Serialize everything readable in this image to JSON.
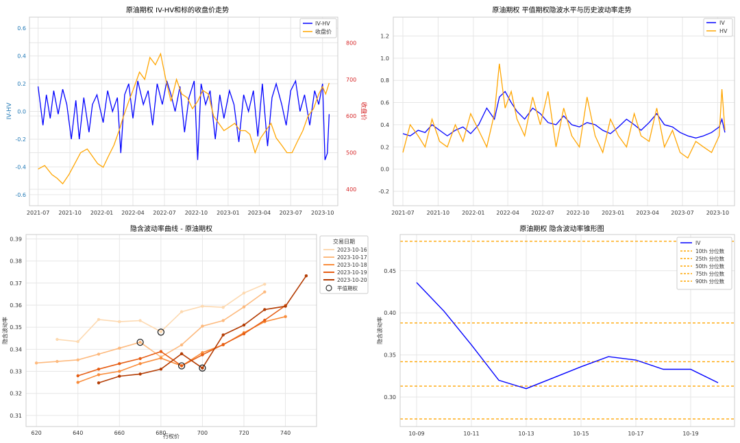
{
  "charts": [
    {
      "title": "原油期权 IV-HV和标的收盘价走势",
      "x_ticks": [
        "2021-07",
        "2021-10",
        "2022-01",
        "2022-04",
        "2022-07",
        "2022-10",
        "2023-01",
        "2023-04",
        "2023-07",
        "2023-10"
      ],
      "y_left_ticks": [
        "-0.6",
        "-0.4",
        "-0.2",
        "0.0",
        "0.2",
        "0.4",
        "0.6"
      ],
      "y_right_ticks": [
        "400",
        "500",
        "600",
        "700",
        "800"
      ],
      "y_left_label": "IV-HV",
      "y_right_label": "收盘价",
      "legend": [
        "IV-HV",
        "收盘价"
      ]
    },
    {
      "title": "原油期权 平值期权隐波水平与历史波动率走势",
      "x_ticks": [
        "2021-07",
        "2021-10",
        "2022-01",
        "2022-04",
        "2022-07",
        "2022-10",
        "2023-01",
        "2023-04",
        "2023-07",
        "2023-10"
      ],
      "y_ticks": [
        "-0.2",
        "0.0",
        "0.2",
        "0.4",
        "0.6",
        "0.8",
        "1.0",
        "1.2"
      ],
      "legend": [
        "IV",
        "HV"
      ]
    },
    {
      "title": "隐含波动率曲线 - 原油期权",
      "xlabel": "行权价",
      "ylabel": "隐含波动率",
      "x_ticks": [
        "620",
        "640",
        "660",
        "680",
        "700",
        "720",
        "740"
      ],
      "y_ticks": [
        "0.31",
        "0.32",
        "0.33",
        "0.34",
        "0.35",
        "0.36",
        "0.37",
        "0.38",
        "0.39"
      ],
      "legend_title": "交易日期",
      "legend": [
        "2023-10-16",
        "2023-10-17",
        "2023-10-18",
        "2023-10-19",
        "2023-10-20",
        "平值期权"
      ]
    },
    {
      "title": "原油期权 隐含波动率锥形图",
      "ylabel": "隐含波动率",
      "x_ticks": [
        "10-09",
        "10-11",
        "10-13",
        "10-15",
        "10-17",
        "10-19"
      ],
      "y_ticks": [
        "0.30",
        "0.35",
        "0.40",
        "0.45"
      ],
      "legend": [
        "IV",
        "10th 分位数",
        "25th 分位数",
        "50th 分位数",
        "75th 分位数",
        "90th 分位数"
      ]
    }
  ],
  "chart_data": [
    {
      "type": "line",
      "title": "原油期权 IV-HV和标的收盘价走势",
      "x_range": [
        "2021-07-01",
        "2023-10-20"
      ],
      "ylim_left": [
        -0.68,
        0.68
      ],
      "ylim_right": [
        355,
        870
      ],
      "series": [
        {
          "name": "IV-HV",
          "axis": "left",
          "color": "#0000ff",
          "x": [
            "2021-07-01",
            "2021-07-15",
            "2021-07-25",
            "2021-08-05",
            "2021-08-15",
            "2021-08-28",
            "2021-09-10",
            "2021-09-22",
            "2021-10-05",
            "2021-10-18",
            "2021-10-28",
            "2021-11-10",
            "2021-11-25",
            "2021-12-05",
            "2021-12-18",
            "2022-01-05",
            "2022-01-18",
            "2022-02-01",
            "2022-02-15",
            "2022-02-25",
            "2022-03-08",
            "2022-03-20",
            "2022-04-01",
            "2022-04-15",
            "2022-05-01",
            "2022-05-15",
            "2022-05-28",
            "2022-06-10",
            "2022-06-25",
            "2022-07-08",
            "2022-07-20",
            "2022-08-01",
            "2022-08-15",
            "2022-08-28",
            "2022-09-10",
            "2022-09-25",
            "2022-10-05",
            "2022-10-15",
            "2022-10-28",
            "2022-11-10",
            "2022-11-25",
            "2022-12-08",
            "2022-12-20",
            "2023-01-05",
            "2023-01-18",
            "2023-02-01",
            "2023-02-15",
            "2023-03-01",
            "2023-03-15",
            "2023-03-28",
            "2023-04-10",
            "2023-04-25",
            "2023-05-08",
            "2023-05-20",
            "2023-06-05",
            "2023-06-18",
            "2023-07-01",
            "2023-07-15",
            "2023-07-28",
            "2023-08-10",
            "2023-08-25",
            "2023-09-08",
            "2023-09-20",
            "2023-10-01",
            "2023-10-08",
            "2023-10-15",
            "2023-10-20"
          ],
          "values": [
            0.18,
            -0.1,
            0.12,
            -0.05,
            0.15,
            -0.02,
            0.16,
            0.05,
            -0.2,
            0.08,
            -0.2,
            0.1,
            -0.15,
            0.05,
            0.12,
            -0.08,
            0.15,
            0.0,
            0.1,
            -0.3,
            0.12,
            0.2,
            -0.05,
            0.22,
            0.05,
            0.15,
            -0.1,
            0.2,
            0.05,
            0.22,
            0.12,
            0.0,
            0.18,
            -0.15,
            0.1,
            0.22,
            -0.35,
            0.2,
            0.05,
            0.15,
            -0.2,
            0.12,
            -0.05,
            0.15,
            0.05,
            -0.22,
            0.12,
            0.0,
            0.15,
            -0.18,
            0.2,
            -0.25,
            0.1,
            0.2,
            0.05,
            -0.1,
            0.15,
            0.22,
            0.0,
            0.12,
            -0.1,
            0.15,
            0.05,
            0.2,
            -0.35,
            -0.3,
            -0.02
          ]
        },
        {
          "name": "收盘价",
          "axis": "right",
          "color": "#ffa500",
          "x": [
            "2021-07-01",
            "2021-07-20",
            "2021-08-10",
            "2021-08-25",
            "2021-09-10",
            "2021-09-28",
            "2021-10-15",
            "2021-11-01",
            "2021-11-20",
            "2021-12-05",
            "2021-12-20",
            "2022-01-05",
            "2022-01-20",
            "2022-02-05",
            "2022-02-20",
            "2022-03-05",
            "2022-03-20",
            "2022-04-05",
            "2022-04-20",
            "2022-05-05",
            "2022-05-20",
            "2022-06-05",
            "2022-06-20",
            "2022-07-05",
            "2022-07-20",
            "2022-08-05",
            "2022-08-20",
            "2022-09-05",
            "2022-09-20",
            "2022-10-05",
            "2022-10-20",
            "2022-11-05",
            "2022-11-20",
            "2022-12-05",
            "2022-12-20",
            "2023-01-05",
            "2023-01-20",
            "2023-02-05",
            "2023-02-20",
            "2023-03-05",
            "2023-03-20",
            "2023-04-05",
            "2023-04-20",
            "2023-05-05",
            "2023-05-20",
            "2023-06-05",
            "2023-06-20",
            "2023-07-05",
            "2023-07-20",
            "2023-08-05",
            "2023-08-20",
            "2023-09-05",
            "2023-09-20",
            "2023-10-01",
            "2023-10-10",
            "2023-10-20"
          ],
          "values": [
            455,
            465,
            440,
            430,
            415,
            440,
            470,
            500,
            510,
            490,
            470,
            460,
            490,
            520,
            560,
            600,
            640,
            680,
            720,
            700,
            760,
            740,
            770,
            700,
            640,
            700,
            660,
            650,
            620,
            640,
            670,
            660,
            600,
            580,
            560,
            570,
            580,
            560,
            560,
            550,
            500,
            540,
            560,
            580,
            540,
            520,
            500,
            500,
            530,
            560,
            600,
            620,
            660,
            680,
            660,
            690
          ]
        }
      ]
    },
    {
      "type": "line",
      "title": "原油期权 平值期权隐波水平与历史波动率走势",
      "x_range": [
        "2021-07-01",
        "2023-10-20"
      ],
      "ylim": [
        -0.33,
        1.37
      ],
      "series": [
        {
          "name": "IV",
          "color": "#0000ff",
          "x": [
            "2021-07-01",
            "2021-07-20",
            "2021-08-10",
            "2021-08-28",
            "2021-09-15",
            "2021-10-05",
            "2021-10-25",
            "2021-11-15",
            "2021-12-05",
            "2021-12-25",
            "2022-01-15",
            "2022-02-05",
            "2022-02-25",
            "2022-03-10",
            "2022-03-25",
            "2022-04-10",
            "2022-04-25",
            "2022-05-15",
            "2022-06-05",
            "2022-06-25",
            "2022-07-15",
            "2022-08-05",
            "2022-08-25",
            "2022-09-15",
            "2022-10-05",
            "2022-10-25",
            "2022-11-15",
            "2022-12-05",
            "2022-12-25",
            "2023-01-15",
            "2023-02-05",
            "2023-02-25",
            "2023-03-15",
            "2023-04-05",
            "2023-04-25",
            "2023-05-15",
            "2023-06-05",
            "2023-06-25",
            "2023-07-15",
            "2023-08-05",
            "2023-08-25",
            "2023-09-15",
            "2023-10-05",
            "2023-10-12",
            "2023-10-20"
          ],
          "values": [
            0.32,
            0.3,
            0.35,
            0.33,
            0.4,
            0.35,
            0.3,
            0.35,
            0.38,
            0.32,
            0.4,
            0.55,
            0.45,
            0.65,
            0.7,
            0.6,
            0.52,
            0.45,
            0.55,
            0.5,
            0.42,
            0.4,
            0.48,
            0.4,
            0.38,
            0.42,
            0.4,
            0.35,
            0.32,
            0.38,
            0.45,
            0.4,
            0.35,
            0.42,
            0.5,
            0.4,
            0.38,
            0.33,
            0.3,
            0.28,
            0.3,
            0.33,
            0.38,
            0.45,
            0.33
          ]
        },
        {
          "name": "HV",
          "color": "#ffa500",
          "x": [
            "2021-07-01",
            "2021-07-20",
            "2021-08-10",
            "2021-08-28",
            "2021-09-15",
            "2021-10-05",
            "2021-10-25",
            "2021-11-15",
            "2021-12-05",
            "2021-12-25",
            "2022-01-15",
            "2022-02-05",
            "2022-02-25",
            "2022-03-10",
            "2022-03-25",
            "2022-04-10",
            "2022-04-25",
            "2022-05-15",
            "2022-06-05",
            "2022-06-25",
            "2022-07-15",
            "2022-08-05",
            "2022-08-25",
            "2022-09-15",
            "2022-10-05",
            "2022-10-25",
            "2022-11-15",
            "2022-12-05",
            "2022-12-25",
            "2023-01-15",
            "2023-02-05",
            "2023-02-25",
            "2023-03-15",
            "2023-04-05",
            "2023-04-25",
            "2023-05-15",
            "2023-06-05",
            "2023-06-25",
            "2023-07-15",
            "2023-08-05",
            "2023-08-25",
            "2023-09-15",
            "2023-10-05",
            "2023-10-12",
            "2023-10-20"
          ],
          "values": [
            0.15,
            0.4,
            0.3,
            0.2,
            0.45,
            0.25,
            0.2,
            0.4,
            0.25,
            0.5,
            0.35,
            0.2,
            0.5,
            0.95,
            0.55,
            0.7,
            0.45,
            0.3,
            0.65,
            0.4,
            0.7,
            0.2,
            0.55,
            0.3,
            0.2,
            0.65,
            0.3,
            0.15,
            0.45,
            0.3,
            0.2,
            0.5,
            0.3,
            0.25,
            0.55,
            0.2,
            0.35,
            0.15,
            0.1,
            0.25,
            0.2,
            0.15,
            0.3,
            0.72,
            0.35
          ]
        }
      ]
    },
    {
      "type": "line",
      "title": "隐含波动率曲线 - 原油期权",
      "xlabel": "行权价",
      "ylabel": "隐含波动率",
      "xlim": [
        615,
        755
      ],
      "ylim": [
        0.305,
        0.392
      ],
      "series": [
        {
          "name": "2023-10-16",
          "color": "#fdd9b0",
          "x": [
            630,
            640,
            650,
            660,
            670,
            680,
            690,
            700,
            710,
            720,
            730
          ],
          "values": [
            0.3445,
            0.3435,
            0.3535,
            0.3525,
            0.353,
            0.348,
            0.357,
            0.3595,
            0.359,
            0.3655,
            0.3695
          ]
        },
        {
          "name": "2023-10-17",
          "color": "#fdb97d",
          "x": [
            620,
            630,
            640,
            650,
            660,
            670,
            680,
            690,
            700,
            710,
            720,
            730
          ],
          "values": [
            0.3338,
            0.3345,
            0.3352,
            0.3378,
            0.3405,
            0.3432,
            0.3365,
            0.342,
            0.3505,
            0.353,
            0.3592,
            0.366
          ]
        },
        {
          "name": "2023-10-18",
          "color": "#f98c3a",
          "x": [
            640,
            650,
            660,
            670,
            680,
            690,
            700,
            710,
            720,
            730,
            740
          ],
          "values": [
            0.325,
            0.3285,
            0.33,
            0.3335,
            0.336,
            0.3325,
            0.3385,
            0.342,
            0.3475,
            0.3525,
            0.3548
          ]
        },
        {
          "name": "2023-10-19",
          "color": "#e65d13",
          "x": [
            640,
            650,
            660,
            670,
            680,
            690,
            700,
            710,
            720,
            730,
            740
          ],
          "values": [
            0.328,
            0.331,
            0.3335,
            0.3358,
            0.339,
            0.3325,
            0.3375,
            0.3422,
            0.347,
            0.3532,
            0.3598
          ]
        },
        {
          "name": "2023-10-20",
          "color": "#b33b02",
          "x": [
            650,
            660,
            670,
            680,
            690,
            700,
            710,
            720,
            730,
            740,
            750
          ],
          "values": [
            0.3248,
            0.3278,
            0.3288,
            0.331,
            0.338,
            0.3315,
            0.3465,
            0.351,
            0.358,
            0.3595,
            0.3733
          ]
        }
      ],
      "atm_points": [
        {
          "x": 670,
          "y": 0.3432
        },
        {
          "x": 680,
          "y": 0.3478
        },
        {
          "x": 690,
          "y": 0.3325
        },
        {
          "x": 700,
          "y": 0.3315
        }
      ]
    },
    {
      "type": "line",
      "title": "原油期权 隐含波动率锥形图",
      "ylabel": "隐含波动率",
      "xlim": [
        -0.6,
        11.6
      ],
      "ylim": [
        0.265,
        0.493
      ],
      "series": [
        {
          "name": "IV",
          "color": "#0000ff",
          "x": [
            0,
            1,
            2,
            3,
            4,
            5,
            6,
            7,
            8,
            9,
            10,
            11
          ],
          "values": [
            0.436,
            0.402,
            0.362,
            0.32,
            0.31,
            0.323,
            0.336,
            0.348,
            0.344,
            0.333,
            0.333,
            0.317
          ]
        }
      ],
      "quantiles": [
        {
          "name": "10th 分位数",
          "value": 0.274
        },
        {
          "name": "25th 分位数",
          "value": 0.313
        },
        {
          "name": "50th 分位数",
          "value": 0.342
        },
        {
          "name": "75th 分位数",
          "value": 0.388
        },
        {
          "name": "90th 分位数",
          "value": 0.485
        }
      ],
      "quantile_color": "#ffa500"
    }
  ]
}
